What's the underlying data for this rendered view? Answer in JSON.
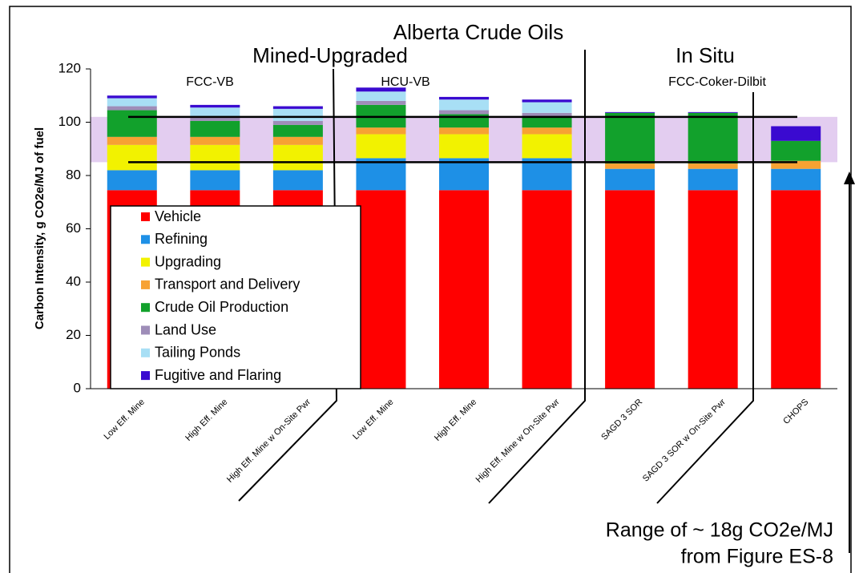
{
  "chart_data": {
    "type": "stacked_bar",
    "y_label": "Carbon Intensity, g CO2e/MJ of fuel",
    "categories": [
      "Low Eff. Mine",
      "High Eff. Mine",
      "High Eff. Mine w On-Site Pwr",
      "Low Eff. Mine",
      "High Eff. Mine",
      "High Eff. Mine w On-Site Pwr",
      "SAGD 3 SOR",
      "SAGD 3 SOR w On-Site Pwr",
      "CHOPS"
    ],
    "series": [
      {
        "name": "Vehicle",
        "color": "#ff0000",
        "values": [
          74.5,
          74.5,
          74.5,
          74.5,
          74.5,
          74.5,
          74.5,
          74.5,
          74.5
        ]
      },
      {
        "name": "Refining",
        "color": "#1e90e6",
        "values": [
          7.5,
          7.5,
          7.5,
          12,
          12,
          12,
          8,
          8,
          8
        ]
      },
      {
        "name": "Upgrading",
        "color": "#f2f200",
        "values": [
          9.5,
          9.5,
          9.5,
          9,
          9,
          9,
          0,
          0,
          0
        ]
      },
      {
        "name": "Transport and Delivery",
        "color": "#f7a233",
        "values": [
          3,
          3,
          3,
          2.5,
          2.5,
          2.5,
          2,
          2,
          3
        ]
      },
      {
        "name": "Crude Oil Production",
        "color": "#12a12c",
        "values": [
          10,
          6,
          4.5,
          8.5,
          5,
          4,
          19,
          19,
          7.5
        ]
      },
      {
        "name": "Land Use",
        "color": "#9e8db8",
        "values": [
          1.5,
          1.5,
          1.5,
          1.5,
          1.5,
          1.5,
          0,
          0,
          0
        ]
      },
      {
        "name": "Tailing Ponds",
        "color": "#a8dff5",
        "values": [
          3,
          3.5,
          4.5,
          3.5,
          4,
          4,
          0,
          0,
          0
        ]
      },
      {
        "name": "Fugitive and Flaring",
        "color": "#3a0ad0",
        "values": [
          1,
          1,
          1,
          1.5,
          1,
          1,
          0.3,
          0.3,
          5.5
        ]
      }
    ],
    "ylim": [
      0,
      120
    ],
    "yticks": [
      0,
      20,
      40,
      60,
      80,
      100,
      120
    ],
    "shaded_range": [
      85,
      102
    ],
    "shaded_color": "#dcc0ec",
    "annotations": [
      "Alberta Crude Oils",
      "Mined-Upgraded",
      "In Situ",
      "FCC-VB",
      "HCU-VB",
      "FCC-Coker-Dilbit",
      "Range of ~ 18g CO2e/MJ",
      "from Figure ES-8"
    ]
  }
}
